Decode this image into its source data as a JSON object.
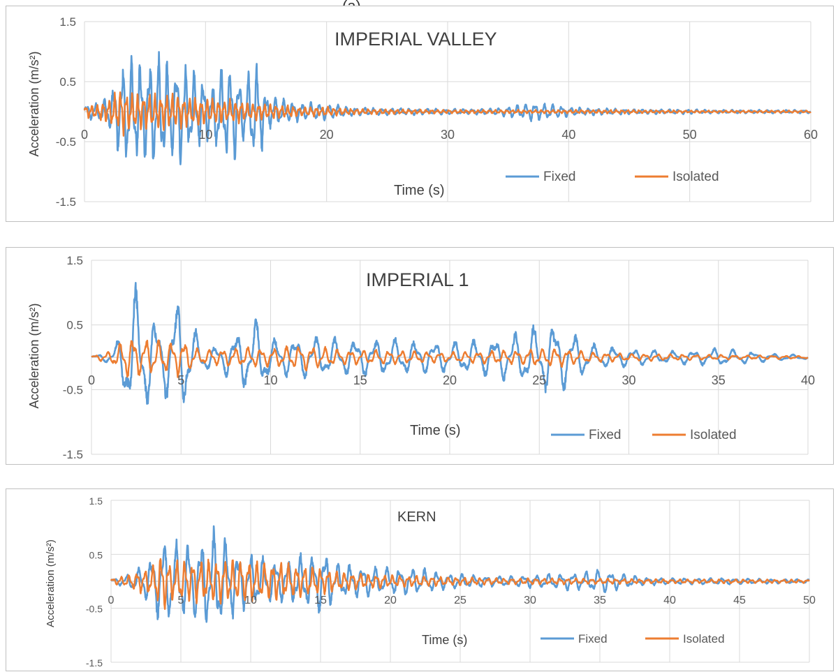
{
  "top_fragment": "(a)",
  "chart_data": [
    {
      "type": "line",
      "title": "IMPERIAL VALLEY",
      "xlabel": "Time (s)",
      "ylabel": "Acceleration (m/s²)",
      "xlim": [
        0,
        60
      ],
      "ylim": [
        -1.5,
        1.5
      ],
      "x_ticks": [
        "0",
        "10",
        "20",
        "30",
        "40",
        "50",
        "60"
      ],
      "y_ticks": [
        "1.5",
        "0.5",
        "-0.5",
        "-1.5"
      ],
      "grid": true,
      "legend": "bottom-right",
      "colors": {
        "Fixed": "#5b9bd5",
        "Isolated": "#ed7d31"
      },
      "series": [
        {
          "name": "Fixed",
          "x": [
            0,
            1,
            2,
            3,
            3.5,
            4,
            5,
            6,
            6.5,
            7,
            8,
            9,
            10,
            10.5,
            11,
            12,
            12.5,
            13,
            14,
            14.5,
            15,
            16,
            17,
            18,
            19,
            20,
            22,
            24,
            26,
            28,
            30,
            32,
            34,
            36,
            37,
            38,
            39,
            40,
            42,
            44,
            46,
            48,
            50,
            52,
            54,
            56,
            58,
            60
          ],
          "amp": [
            0.12,
            0.15,
            0.25,
            0.85,
            0.95,
            0.85,
            0.9,
            1.02,
            0.9,
            0.85,
            0.85,
            0.75,
            0.55,
            0.4,
            0.8,
            0.82,
            0.8,
            0.6,
            0.82,
            0.82,
            0.3,
            0.25,
            0.18,
            0.15,
            0.15,
            0.14,
            0.08,
            0.06,
            0.06,
            0.05,
            0.05,
            0.05,
            0.06,
            0.12,
            0.16,
            0.14,
            0.12,
            0.08,
            0.06,
            0.05,
            0.04,
            0.04,
            0.04,
            0.03,
            0.03,
            0.03,
            0.03,
            0.03
          ]
        },
        {
          "name": "Isolated",
          "x": [
            0,
            1,
            2,
            3,
            4,
            6,
            8,
            10,
            12,
            14,
            16,
            18,
            20,
            22,
            26,
            30,
            35,
            40,
            45,
            50,
            55,
            60
          ],
          "amp": [
            0.1,
            0.12,
            0.2,
            0.4,
            0.3,
            0.3,
            0.28,
            0.22,
            0.2,
            0.15,
            0.12,
            0.08,
            0.08,
            0.05,
            0.04,
            0.03,
            0.03,
            0.03,
            0.03,
            0.02,
            0.02,
            0.02
          ]
        }
      ]
    },
    {
      "type": "line",
      "title": "IMPERIAL 1",
      "xlabel": "Time (s)",
      "ylabel": "Acceleration (m/s²)",
      "xlim": [
        0,
        40
      ],
      "ylim": [
        -1.5,
        1.5
      ],
      "x_ticks": [
        "0",
        "5",
        "10",
        "15",
        "20",
        "25",
        "30",
        "35",
        "40"
      ],
      "y_ticks": [
        "1.5",
        "0.5",
        "-0.5",
        "-1.5"
      ],
      "grid": true,
      "legend": "bottom-right",
      "colors": {
        "Fixed": "#5b9bd5",
        "Isolated": "#ed7d31"
      },
      "series": [
        {
          "name": "Fixed",
          "x": [
            0,
            1,
            1.5,
            2,
            2.5,
            3,
            4,
            4.5,
            5,
            6,
            7,
            8,
            9,
            9.5,
            10,
            11,
            12,
            14,
            16,
            18,
            20,
            22,
            24,
            25,
            26,
            27,
            28,
            30,
            32,
            34,
            35,
            36,
            38,
            40
          ],
          "amp": [
            0.02,
            0.1,
            0.3,
            0.95,
            1.2,
            0.85,
            0.5,
            1.0,
            0.95,
            0.3,
            0.15,
            0.4,
            0.6,
            0.6,
            0.3,
            0.3,
            0.35,
            0.3,
            0.3,
            0.28,
            0.25,
            0.3,
            0.42,
            0.55,
            0.6,
            0.4,
            0.2,
            0.15,
            0.1,
            0.12,
            0.15,
            0.12,
            0.06,
            0.03
          ]
        },
        {
          "name": "Isolated",
          "x": [
            0,
            1,
            1.5,
            2,
            3,
            4,
            5,
            6,
            8,
            10,
            12,
            14,
            16,
            18,
            20,
            22,
            24,
            25,
            26,
            28,
            30,
            32,
            35,
            38,
            40
          ],
          "amp": [
            0.02,
            0.1,
            0.2,
            0.35,
            0.3,
            0.25,
            0.3,
            0.12,
            0.15,
            0.15,
            0.2,
            0.12,
            0.12,
            0.1,
            0.08,
            0.1,
            0.12,
            0.15,
            0.15,
            0.08,
            0.06,
            0.05,
            0.04,
            0.03,
            0.02
          ]
        }
      ]
    },
    {
      "type": "line",
      "title": "KERN",
      "xlabel": "Time (s)",
      "ylabel": "Acceleration (m/s²)",
      "xlim": [
        0,
        50
      ],
      "ylim": [
        -1.5,
        1.5
      ],
      "x_ticks": [
        "0",
        "5",
        "10",
        "15",
        "20",
        "25",
        "30",
        "35",
        "40",
        "45",
        "50"
      ],
      "y_ticks": [
        "1.5",
        "0.5",
        "-0.5",
        "-1.5"
      ],
      "grid": true,
      "legend": "bottom-right",
      "colors": {
        "Fixed": "#5b9bd5",
        "Isolated": "#ed7d31"
      },
      "series": [
        {
          "name": "Fixed",
          "x": [
            0,
            1,
            2,
            3,
            3.5,
            4,
            5,
            6,
            7,
            7.5,
            8,
            9,
            10,
            11,
            12,
            13,
            14,
            15,
            15.5,
            16,
            18,
            20,
            22,
            24,
            26,
            28,
            30,
            32,
            34,
            35,
            36,
            38,
            40,
            42,
            44,
            46,
            48,
            50
          ],
          "amp": [
            0.05,
            0.1,
            0.25,
            0.5,
            0.8,
            0.8,
            0.7,
            0.8,
            0.85,
            1.02,
            0.9,
            0.6,
            0.5,
            0.45,
            0.4,
            0.45,
            0.55,
            0.6,
            0.55,
            0.35,
            0.3,
            0.25,
            0.25,
            0.15,
            0.12,
            0.1,
            0.12,
            0.15,
            0.18,
            0.25,
            0.18,
            0.08,
            0.06,
            0.06,
            0.06,
            0.05,
            0.04,
            0.04
          ]
        },
        {
          "name": "Isolated",
          "x": [
            0,
            1,
            2,
            3,
            3.8,
            4,
            5,
            6,
            8,
            10,
            12,
            14,
            16,
            18,
            20,
            24,
            28,
            32,
            36,
            40,
            44,
            50
          ],
          "amp": [
            0.05,
            0.1,
            0.2,
            0.3,
            0.6,
            0.35,
            0.4,
            0.4,
            0.42,
            0.4,
            0.35,
            0.3,
            0.2,
            0.15,
            0.12,
            0.08,
            0.06,
            0.06,
            0.05,
            0.04,
            0.04,
            0.03
          ]
        }
      ]
    }
  ]
}
